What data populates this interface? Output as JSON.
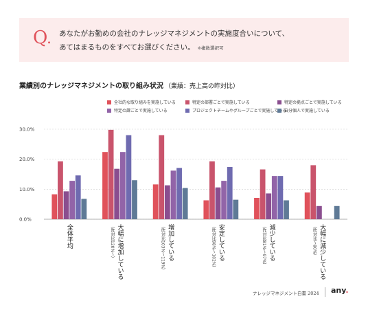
{
  "question": {
    "mark": "Q",
    "dot": ".",
    "line1": "あなたがお勤めの会社のナレッジマネジメントの実施度合いについて、",
    "line2": "あてはまるものをすべてお選びください。",
    "note": "※複数選択可"
  },
  "footer": {
    "text": "ナレッジマネジメント白書 2024",
    "brand": "any",
    "brand_dot": "."
  },
  "colors": {
    "accent": "#e0525b",
    "question_bg": "#fcecec"
  },
  "chart_data": {
    "type": "bar",
    "title": "業績別のナレッジマネジメントの取り組み状況",
    "subtitle": "（業績：売上高の昨対比）",
    "ylim": [
      0,
      30
    ],
    "yticks": [
      "0.0%",
      "10.0%",
      "20.0%",
      "30.0%"
    ],
    "grid": true,
    "legend_position": "top",
    "categories": [
      {
        "label": "全体平均",
        "sub": ""
      },
      {
        "label": "大幅に増加している",
        "sub": "（昨対比120%～）"
      },
      {
        "label": "増加している",
        "sub": "（昨対比103%～119%）"
      },
      {
        "label": "安定している",
        "sub": "（昨対比98%～102%）"
      },
      {
        "label": "減少している",
        "sub": "（昨対比81%～97%）"
      },
      {
        "label": "大幅に減少している",
        "sub": "（昨対比～80%）"
      }
    ],
    "series": [
      {
        "name": "全社的な取り組みを実施している",
        "color": "#e0525b",
        "values": [
          8.3,
          22.4,
          11.6,
          6.3,
          7.1,
          8.9
        ]
      },
      {
        "name": "特定の部署ごとで実施している",
        "color": "#c9546c",
        "values": [
          19.3,
          29.8,
          28.0,
          19.3,
          16.6,
          18.0
        ]
      },
      {
        "name": "特定の拠点ごとで実施している",
        "color": "#8a4e8f",
        "values": [
          9.3,
          16.8,
          11.3,
          10.6,
          8.6,
          4.4
        ]
      },
      {
        "name": "特定の課ごとで実施している",
        "color": "#9264a8",
        "values": [
          12.8,
          22.4,
          16.2,
          12.8,
          14.4,
          0
        ]
      },
      {
        "name": "プロジェクトチームやグループごとで実施している",
        "color": "#6f6bb0",
        "values": [
          14.6,
          28.0,
          17.1,
          17.4,
          14.4,
          0
        ]
      },
      {
        "name": "自分個人で実施している",
        "color": "#5f7a96",
        "values": [
          6.8,
          13.0,
          10.4,
          6.5,
          6.3,
          4.4
        ]
      }
    ]
  }
}
